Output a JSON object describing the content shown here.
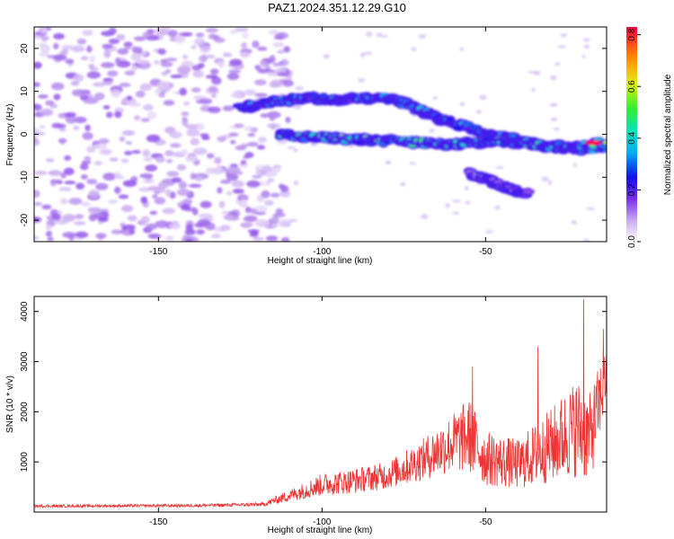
{
  "title": "PAZ1.2024.351.12.29.G10",
  "chart_data": [
    {
      "type": "heatmap",
      "xlabel": "Height of straight line (km)",
      "ylabel": "Frequency (Hz)",
      "xlim": [
        -188,
        -13
      ],
      "ylim": [
        -25,
        25
      ],
      "x_ticks": [
        -150,
        -100,
        -50
      ],
      "y_ticks": [
        -20,
        -10,
        0,
        10,
        20
      ],
      "colorbar": {
        "label": "Normalized spectral amplitude",
        "range": [
          0,
          0.83
        ],
        "ticks": [
          "0.0",
          "0.2",
          "0.4",
          "0.6",
          "0.8"
        ]
      },
      "tracks": [
        {
          "points": [
            [
              -125,
              6
            ],
            [
              -115,
              7.5
            ],
            [
              -105,
              8.5
            ],
            [
              -95,
              8
            ],
            [
              -85,
              8.5
            ],
            [
              -77,
              8
            ],
            [
              -70,
              5.5
            ],
            [
              -62,
              3
            ],
            [
              -55,
              1.5
            ],
            [
              -48,
              0
            ],
            [
              -40,
              -1.5
            ],
            [
              -30,
              -3
            ],
            [
              -20,
              -3.5
            ],
            [
              -13,
              -3
            ]
          ],
          "amplitude": 0.3
        },
        {
          "points": [
            [
              -113,
              0
            ],
            [
              -105,
              -0.5
            ],
            [
              -95,
              -1
            ],
            [
              -85,
              -1.3
            ],
            [
              -78,
              -1.5
            ],
            [
              -70,
              -2
            ],
            [
              -62,
              -2.5
            ],
            [
              -55,
              -2
            ],
            [
              -45,
              -1.5
            ],
            [
              -38,
              -2
            ],
            [
              -30,
              -3
            ],
            [
              -22,
              -2.5
            ],
            [
              -13,
              -2
            ]
          ],
          "amplitude": 0.45
        },
        {
          "points": [
            [
              -55,
              -9
            ],
            [
              -48,
              -11
            ],
            [
              -42,
              -13
            ],
            [
              -37,
              -14
            ]
          ],
          "amplitude": 0.15
        }
      ],
      "noise_region": {
        "x": [
          -188,
          -110
        ],
        "y": [
          -25,
          25
        ],
        "amplitude": 0.12
      }
    },
    {
      "type": "line",
      "xlabel": "Height of straight line (km)",
      "ylabel": "SNR (10 * v/v)",
      "xlim": [
        -188,
        -13
      ],
      "ylim": [
        0,
        4300
      ],
      "x_ticks": [
        -150,
        -100,
        -50
      ],
      "y_ticks": [
        1000,
        2000,
        3000,
        4000
      ],
      "color": "#ee3333",
      "envelope": [
        {
          "x": -188,
          "mean": 110,
          "spread": 55
        },
        {
          "x": -140,
          "mean": 120,
          "spread": 60
        },
        {
          "x": -118,
          "mean": 140,
          "spread": 80
        },
        {
          "x": -108,
          "mean": 330,
          "spread": 280
        },
        {
          "x": -100,
          "mean": 480,
          "spread": 450
        },
        {
          "x": -90,
          "mean": 550,
          "spread": 500
        },
        {
          "x": -80,
          "mean": 650,
          "spread": 550
        },
        {
          "x": -70,
          "mean": 900,
          "spread": 800
        },
        {
          "x": -60,
          "mean": 1200,
          "spread": 1200
        },
        {
          "x": -55,
          "mean": 1300,
          "spread": 1500
        },
        {
          "x": -50,
          "mean": 900,
          "spread": 1100
        },
        {
          "x": -40,
          "mean": 800,
          "spread": 1000
        },
        {
          "x": -30,
          "mean": 1100,
          "spread": 1500
        },
        {
          "x": -22,
          "mean": 1400,
          "spread": 2000
        },
        {
          "x": -18,
          "mean": 1200,
          "spread": 1800
        },
        {
          "x": -14,
          "mean": 2300,
          "spread": 1400
        },
        {
          "x": -13,
          "mean": 2600,
          "spread": 900
        }
      ],
      "peaks": [
        {
          "x": -54,
          "y": 2900
        },
        {
          "x": -34,
          "y": 3300
        },
        {
          "x": -20,
          "y": 4250
        },
        {
          "x": -14,
          "y": 3650
        }
      ]
    }
  ]
}
